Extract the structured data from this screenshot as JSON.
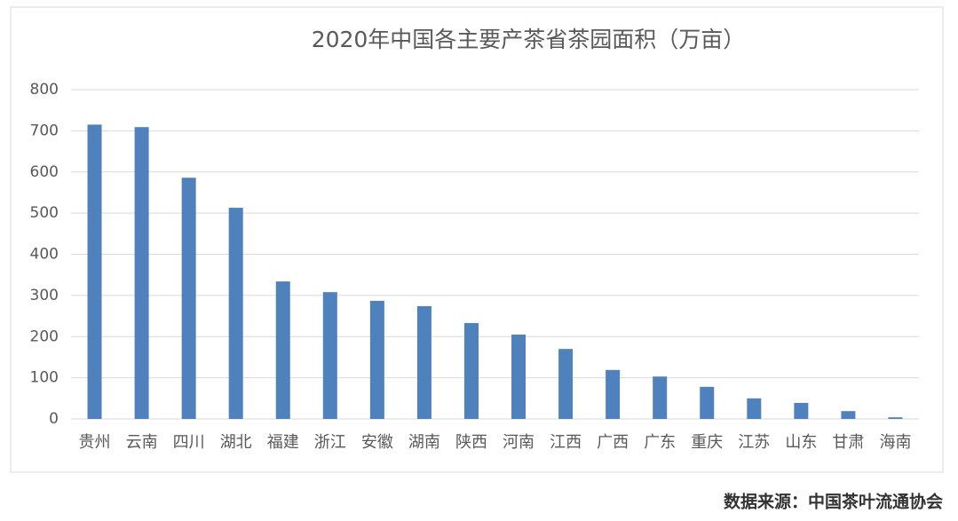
{
  "chart_data": {
    "type": "bar",
    "title": "2020年中国各主要产茶省茶园面积（万亩）",
    "categories": [
      "贵州",
      "云南",
      "四川",
      "湖北",
      "福建",
      "浙江",
      "安徽",
      "湖南",
      "陕西",
      "河南",
      "江西",
      "广西",
      "广东",
      "重庆",
      "江苏",
      "山东",
      "甘肃",
      "海南"
    ],
    "values": [
      715,
      709,
      586,
      513,
      334,
      308,
      287,
      274,
      233,
      205,
      170,
      119,
      103,
      78,
      50,
      39,
      19,
      4
    ],
    "color": "#4f81bd",
    "ylim": [
      0,
      800
    ],
    "yticks": [
      0,
      100,
      200,
      300,
      400,
      500,
      600,
      700,
      800
    ],
    "grid": true,
    "source": "数据来源：中国茶叶流通协会"
  }
}
